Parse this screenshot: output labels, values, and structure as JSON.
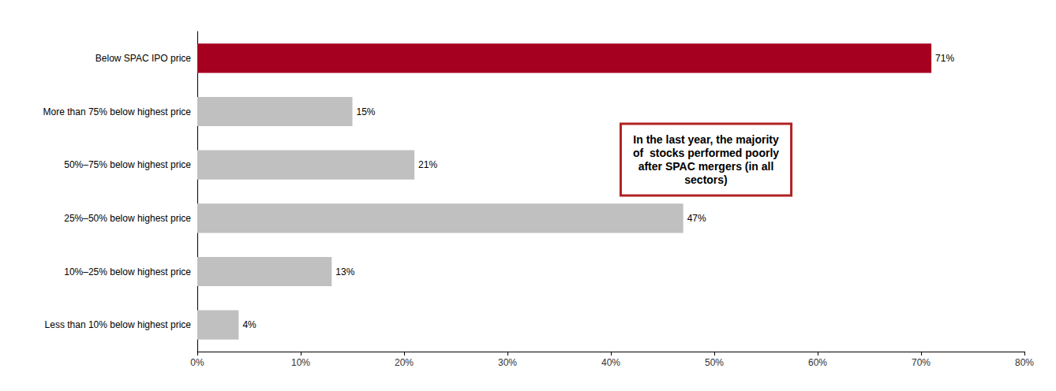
{
  "chart_data": {
    "type": "bar",
    "orientation": "horizontal",
    "categories": [
      "Less than 10% below highest price",
      "10%–25% below highest price",
      "25%–50% below highest price",
      "50%–75% below highest price",
      "More than 75% below highest price",
      "Below SPAC IPO price"
    ],
    "values": [
      4,
      13,
      47,
      21,
      15,
      71
    ],
    "value_labels": [
      "4%",
      "13%",
      "47%",
      "21%",
      "15%",
      "71%"
    ],
    "colors": [
      "#c0c0c0",
      "#c0c0c0",
      "#c0c0c0",
      "#c0c0c0",
      "#c0c0c0",
      "#a50020"
    ],
    "data_labels": true,
    "xlim": [
      0,
      80
    ],
    "xticks": [
      {
        "value": 0,
        "label": "0%"
      },
      {
        "value": 10,
        "label": "10%"
      },
      {
        "value": 20,
        "label": "20%"
      },
      {
        "value": 30,
        "label": "30%"
      },
      {
        "value": 40,
        "label": "40%"
      },
      {
        "value": 50,
        "label": "50%"
      },
      {
        "value": 60,
        "label": "60%"
      },
      {
        "value": 70,
        "label": "70%"
      },
      {
        "value": 80,
        "label": "80%"
      }
    ],
    "grid": false,
    "annotation": {
      "text": "In the last year, the majority\nof  stocks performed poorly\nafter SPAC mergers (in all\nsectors)",
      "color": "#b22222"
    }
  }
}
